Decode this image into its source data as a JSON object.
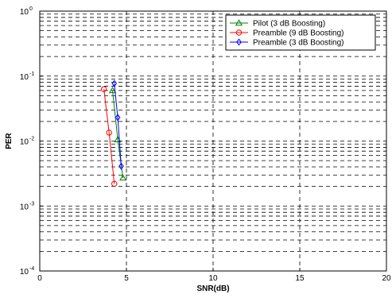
{
  "chart_data": {
    "type": "line",
    "title": "",
    "xlabel": "SNR(dB)",
    "ylabel": "PER",
    "xlim": [
      0,
      20
    ],
    "ylim": [
      0.0001,
      1
    ],
    "yscale": "log",
    "grid": true,
    "legend_position": "top-right",
    "x_ticks": [
      "0",
      "5",
      "10",
      "15",
      "20"
    ],
    "y_ticks": [
      {
        "base": "10",
        "exp": "-4"
      },
      {
        "base": "10",
        "exp": "-3"
      },
      {
        "base": "10",
        "exp": "-2"
      },
      {
        "base": "10",
        "exp": "-1"
      },
      {
        "base": "10",
        "exp": "0"
      }
    ],
    "series": [
      {
        "name": "Pilot (3 dB Boosting)",
        "color": "#008000",
        "marker": "triangle",
        "x": [
          4.2,
          4.5,
          4.8
        ],
        "y": [
          0.06,
          0.0105,
          0.0027
        ]
      },
      {
        "name": "Preamble (9 dB Boosting)",
        "color": "#ff0000",
        "marker": "circle",
        "x": [
          3.7,
          4.0,
          4.3
        ],
        "y": [
          0.063,
          0.0135,
          0.0022
        ]
      },
      {
        "name": "Preamble (3 dB Boosting)",
        "color": "#0000ff",
        "marker": "diamond",
        "x": [
          4.3,
          4.5,
          4.7
        ],
        "y": [
          0.077,
          0.023,
          0.0041
        ]
      }
    ]
  }
}
